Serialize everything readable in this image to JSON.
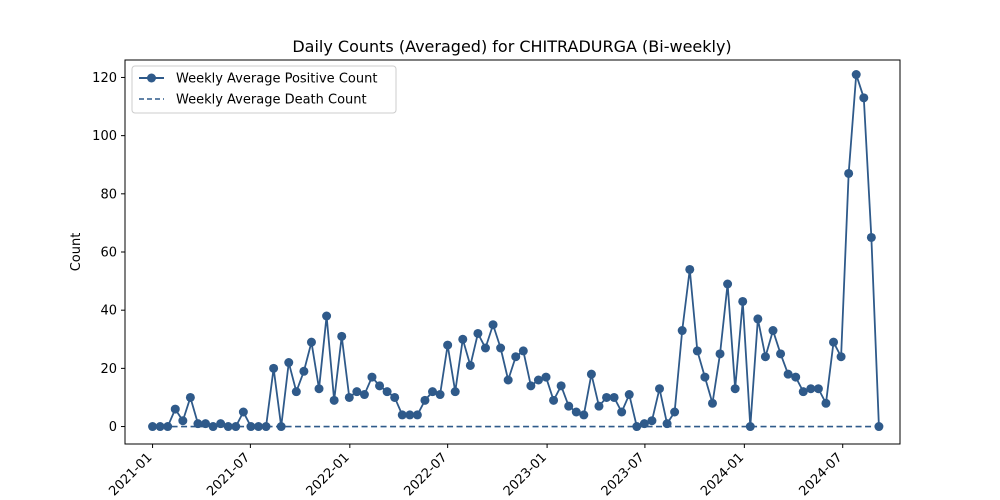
{
  "chart_data": {
    "type": "line",
    "title": "Daily Counts (Averaged) for CHITRADURGA (Bi-weekly)",
    "xlabel": "",
    "ylabel": "Count",
    "ylim": [
      -6,
      126
    ],
    "xlim": [
      "2020-11-11",
      "2024-10-15"
    ],
    "x_ticks": [
      "2021-01",
      "2021-07",
      "2022-01",
      "2022-07",
      "2023-01",
      "2023-07",
      "2024-01",
      "2024-07"
    ],
    "y_ticks": [
      0,
      20,
      40,
      60,
      80,
      100,
      120
    ],
    "grid": false,
    "legend_position": "top-left",
    "colors": {
      "line": "#2f5a8a"
    },
    "x": [
      "2021-01-01",
      "2021-01-15",
      "2021-01-29",
      "2021-02-12",
      "2021-02-26",
      "2021-03-12",
      "2021-03-26",
      "2021-04-09",
      "2021-04-23",
      "2021-05-07",
      "2021-05-21",
      "2021-06-04",
      "2021-06-18",
      "2021-07-02",
      "2021-07-16",
      "2021-07-30",
      "2021-08-13",
      "2021-08-27",
      "2021-09-10",
      "2021-09-24",
      "2021-10-08",
      "2021-10-22",
      "2021-11-05",
      "2021-11-19",
      "2021-12-03",
      "2021-12-17",
      "2021-12-31",
      "2022-01-14",
      "2022-01-28",
      "2022-02-11",
      "2022-02-25",
      "2022-03-11",
      "2022-03-25",
      "2022-04-08",
      "2022-04-22",
      "2022-05-06",
      "2022-05-20",
      "2022-06-03",
      "2022-06-17",
      "2022-07-01",
      "2022-07-15",
      "2022-07-29",
      "2022-08-12",
      "2022-08-26",
      "2022-09-09",
      "2022-09-23",
      "2022-10-07",
      "2022-10-21",
      "2022-11-04",
      "2022-11-18",
      "2022-12-02",
      "2022-12-16",
      "2022-12-30",
      "2023-01-13",
      "2023-01-27",
      "2023-02-10",
      "2023-02-24",
      "2023-03-10",
      "2023-03-24",
      "2023-04-07",
      "2023-04-21",
      "2023-05-05",
      "2023-05-19",
      "2023-06-02",
      "2023-06-16",
      "2023-06-30",
      "2023-07-14",
      "2023-07-28",
      "2023-08-11",
      "2023-08-25",
      "2023-09-08",
      "2023-09-22",
      "2023-10-06",
      "2023-10-20",
      "2023-11-03",
      "2023-11-17",
      "2023-12-01",
      "2023-12-15",
      "2023-12-29",
      "2024-01-12",
      "2024-01-26",
      "2024-02-09",
      "2024-02-23",
      "2024-03-08",
      "2024-03-22",
      "2024-04-05",
      "2024-04-19",
      "2024-05-03",
      "2024-05-17",
      "2024-05-31",
      "2024-06-14",
      "2024-06-28",
      "2024-07-12",
      "2024-07-26",
      "2024-08-09",
      "2024-08-23",
      "2024-09-06"
    ],
    "series": [
      {
        "name": "Weekly Average Positive Count",
        "style": "solid-with-markers",
        "values": [
          0,
          0,
          0,
          6,
          2,
          10,
          1,
          1,
          0,
          1,
          0,
          0,
          5,
          0,
          0,
          0,
          20,
          0,
          22,
          12,
          19,
          29,
          13,
          38,
          9,
          31,
          10,
          12,
          11,
          17,
          14,
          12,
          10,
          4,
          4,
          4,
          9,
          12,
          11,
          28,
          12,
          30,
          21,
          32,
          27,
          35,
          27,
          16,
          24,
          26,
          14,
          16,
          17,
          9,
          14,
          7,
          5,
          4,
          18,
          7,
          10,
          10,
          5,
          11,
          0,
          1,
          2,
          13,
          1,
          5,
          33,
          54,
          26,
          17,
          8,
          25,
          49,
          13,
          43,
          0,
          37,
          24,
          33,
          25,
          18,
          17,
          12,
          13,
          13,
          8,
          29,
          24,
          87,
          121,
          113,
          65,
          0
        ]
      },
      {
        "name": "Weekly Average Death Count",
        "style": "dashed",
        "values": [
          0,
          0,
          0,
          0,
          0,
          0,
          0,
          0,
          0,
          0,
          0,
          0,
          0,
          0,
          0,
          0,
          0,
          0,
          0,
          0,
          0,
          0,
          0,
          0,
          0,
          0,
          0,
          0,
          0,
          0,
          0,
          0,
          0,
          0,
          0,
          0,
          0,
          0,
          0,
          0,
          0,
          0,
          0,
          0,
          0,
          0,
          0,
          0,
          0,
          0,
          0,
          0,
          0,
          0,
          0,
          0,
          0,
          0,
          0,
          0,
          0,
          0,
          0,
          0,
          0,
          0,
          0,
          0,
          0,
          0,
          0,
          0,
          0,
          0,
          0,
          0,
          0,
          0,
          0,
          0,
          0,
          0,
          0,
          0,
          0,
          0,
          0,
          0,
          0,
          0,
          0,
          0,
          0,
          0,
          0,
          0,
          0
        ]
      }
    ]
  }
}
